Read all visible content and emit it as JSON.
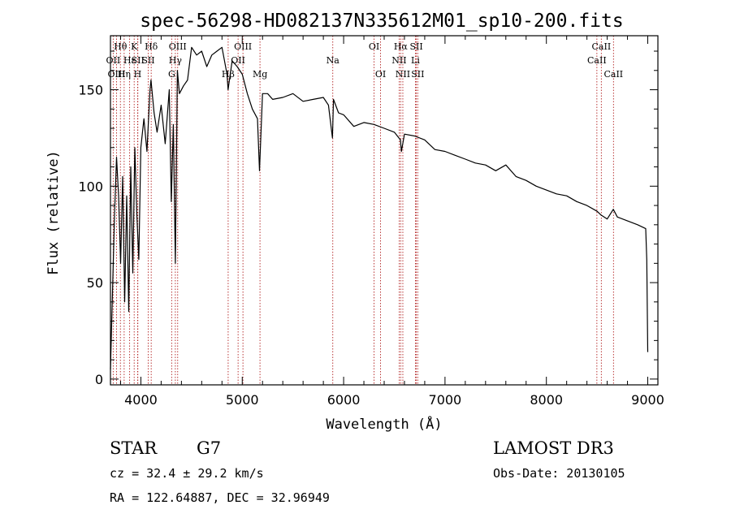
{
  "chart_data": {
    "type": "line",
    "title": "spec-56298-HD082137N335612M01_sp10-200.fits",
    "xlabel": "Wavelength (Å)",
    "ylabel": "Flux (relative)",
    "xlim": [
      3700,
      9100
    ],
    "ylim": [
      -3,
      178
    ],
    "xticks": [
      4000,
      5000,
      6000,
      7000,
      8000,
      9000
    ],
    "yticks": [
      0,
      50,
      100,
      150
    ],
    "series": [
      {
        "name": "spectrum",
        "x": [
          3700,
          3720,
          3740,
          3760,
          3780,
          3800,
          3820,
          3840,
          3860,
          3880,
          3900,
          3920,
          3940,
          3960,
          3980,
          4000,
          4030,
          4060,
          4090,
          4100,
          4130,
          4160,
          4200,
          4240,
          4280,
          4300,
          4320,
          4340,
          4360,
          4380,
          4420,
          4460,
          4500,
          4550,
          4600,
          4650,
          4700,
          4750,
          4800,
          4850,
          4860,
          4900,
          4950,
          5000,
          5050,
          5100,
          5150,
          5170,
          5200,
          5250,
          5300,
          5400,
          5500,
          5600,
          5700,
          5800,
          5850,
          5890,
          5900,
          5950,
          6000,
          6100,
          6200,
          6300,
          6400,
          6500,
          6560,
          6570,
          6600,
          6700,
          6800,
          6900,
          7000,
          7100,
          7200,
          7300,
          7400,
          7500,
          7600,
          7700,
          7800,
          7900,
          8000,
          8100,
          8200,
          8300,
          8400,
          8500,
          8540,
          8600,
          8660,
          8700,
          8800,
          8900,
          8980,
          8990,
          9000
        ],
        "values": [
          5,
          45,
          85,
          115,
          95,
          60,
          105,
          40,
          95,
          35,
          110,
          55,
          120,
          85,
          62,
          120,
          135,
          118,
          150,
          155,
          138,
          128,
          142,
          122,
          150,
          92,
          132,
          60,
          160,
          148,
          152,
          155,
          172,
          168,
          170,
          162,
          168,
          170,
          172,
          158,
          150,
          165,
          162,
          158,
          148,
          140,
          135,
          108,
          148,
          148,
          145,
          146,
          148,
          144,
          145,
          146,
          142,
          125,
          145,
          138,
          137,
          131,
          133,
          132,
          130,
          128,
          124,
          118,
          127,
          126,
          124,
          119,
          118,
          116,
          114,
          112,
          111,
          108,
          111,
          105,
          103,
          100,
          98,
          96,
          95,
          92,
          90,
          87,
          85,
          83,
          88,
          84,
          82,
          80,
          78,
          62,
          14
        ]
      }
    ],
    "line_ids": [
      {
        "name": "Hθ",
        "x": 3798,
        "row": 0
      },
      {
        "name": "OII",
        "x": 3727,
        "row": 1
      },
      {
        "name": "OIII",
        "x": 3760,
        "row": 2
      },
      {
        "name": "Hη",
        "x": 3835,
        "row": 2
      },
      {
        "name": "K",
        "x": 3934,
        "row": 0
      },
      {
        "name": "Hε",
        "x": 3889,
        "row": 1
      },
      {
        "name": "SII",
        "x": 3970,
        "row": 1
      },
      {
        "name": "H",
        "x": 3968,
        "row": 2
      },
      {
        "name": "Hδ",
        "x": 4102,
        "row": 0
      },
      {
        "name": "SII",
        "x": 4072,
        "row": 1
      },
      {
        "name": "OIII",
        "x": 4363,
        "row": 0
      },
      {
        "name": "Hγ",
        "x": 4340,
        "row": 1
      },
      {
        "name": "G",
        "x": 4304,
        "row": 2
      },
      {
        "name": "OIII",
        "x": 5007,
        "row": 0
      },
      {
        "name": "OII",
        "x": 4959,
        "row": 1
      },
      {
        "name": "Hβ",
        "x": 4861,
        "row": 2
      },
      {
        "name": "Mg",
        "x": 5175,
        "row": 2
      },
      {
        "name": "Na",
        "x": 5893,
        "row": 1
      },
      {
        "name": "OI",
        "x": 6300,
        "row": 0
      },
      {
        "name": "OI",
        "x": 6364,
        "row": 2
      },
      {
        "name": "Hα",
        "x": 6563,
        "row": 0
      },
      {
        "name": "NII",
        "x": 6548,
        "row": 1
      },
      {
        "name": "NII",
        "x": 6584,
        "row": 2
      },
      {
        "name": "SII",
        "x": 6717,
        "row": 0
      },
      {
        "name": "Li",
        "x": 6708,
        "row": 1
      },
      {
        "name": "SII",
        "x": 6731,
        "row": 2
      },
      {
        "name": "CaII",
        "x": 8542,
        "row": 0
      },
      {
        "name": "CaII",
        "x": 8498,
        "row": 1
      },
      {
        "name": "CaII",
        "x": 8662,
        "row": 2
      }
    ]
  },
  "info": {
    "object_class": "STAR",
    "subclass": "G7",
    "survey": "LAMOST DR3",
    "cz": "cz = 32.4 ± 29.2 km/s",
    "obs_date": "Obs-Date: 20130105",
    "coords": "RA = 122.64887, DEC =  32.96949"
  }
}
